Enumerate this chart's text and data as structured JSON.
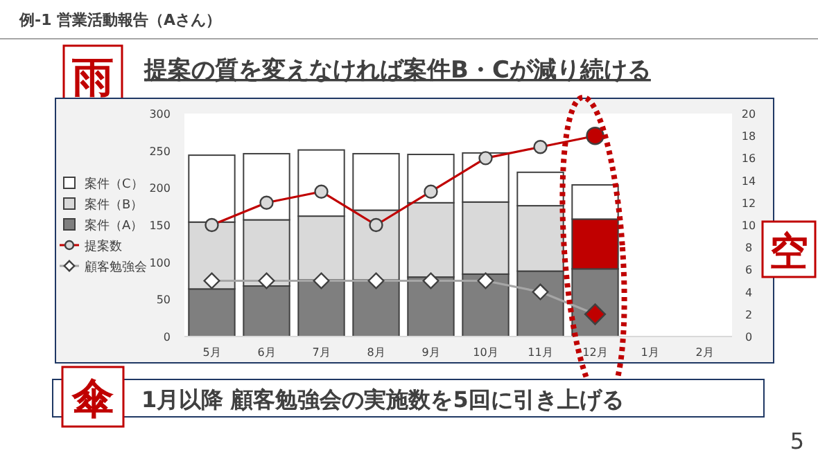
{
  "chart_data": {
    "type": "bar",
    "title": "例-1 営業活動報告（Aさん）",
    "annotations": [
      "雨",
      "提案の質を変えなければ案件B・Cが減り続ける",
      "空",
      "傘",
      "1月以降 顧客勉強会の実施数を5回に引き上げる",
      "5"
    ],
    "categories": [
      "5月",
      "6月",
      "7月",
      "8月",
      "9月",
      "10月",
      "11月",
      "12月",
      "1月",
      "2月"
    ],
    "stacked": true,
    "legend": "left",
    "ylim": [
      0,
      300
    ],
    "yticks": [
      0,
      50,
      100,
      150,
      200,
      250,
      300
    ],
    "y2lim": [
      0,
      20
    ],
    "y2ticks": [
      0,
      2,
      4,
      6,
      8,
      10,
      12,
      14,
      16,
      18,
      20
    ],
    "series": [
      {
        "name": "案件（A）",
        "color": "#7f7f7f",
        "values": [
          64,
          68,
          76,
          76,
          80,
          84,
          88,
          91,
          null,
          null
        ]
      },
      {
        "name": "案件（B）",
        "color": "#d9d9d9",
        "colors": [
          "#d9d9d9",
          "#d9d9d9",
          "#d9d9d9",
          "#d9d9d9",
          "#d9d9d9",
          "#d9d9d9",
          "#d9d9d9",
          "#c00000",
          null,
          null
        ],
        "values": [
          90,
          89,
          86,
          94,
          100,
          97,
          88,
          67,
          null,
          null
        ]
      },
      {
        "name": "案件（C）",
        "color": "#ffffff",
        "values": [
          90,
          89,
          89,
          76,
          65,
          66,
          45,
          46,
          null,
          null
        ]
      },
      {
        "name": "提案数",
        "type": "line",
        "axis": "y2",
        "marker": "circle",
        "color": "#c00000",
        "colors": [
          "#d9d9d9",
          "#d9d9d9",
          "#d9d9d9",
          "#d9d9d9",
          "#d9d9d9",
          "#d9d9d9",
          "#d9d9d9",
          "#c00000",
          null,
          null
        ],
        "values": [
          10,
          12,
          13,
          10,
          13,
          16,
          17,
          18,
          null,
          null
        ]
      },
      {
        "name": "顧客勉強会",
        "type": "line",
        "axis": "y2",
        "marker": "diamond",
        "color": "#a6a6a6",
        "colors": [
          "#ffffff",
          "#ffffff",
          "#ffffff",
          "#ffffff",
          "#ffffff",
          "#ffffff",
          "#ffffff",
          "#c00000",
          null,
          null
        ],
        "values": [
          5,
          5,
          5,
          5,
          5,
          5,
          4,
          2,
          null,
          null
        ]
      }
    ]
  }
}
